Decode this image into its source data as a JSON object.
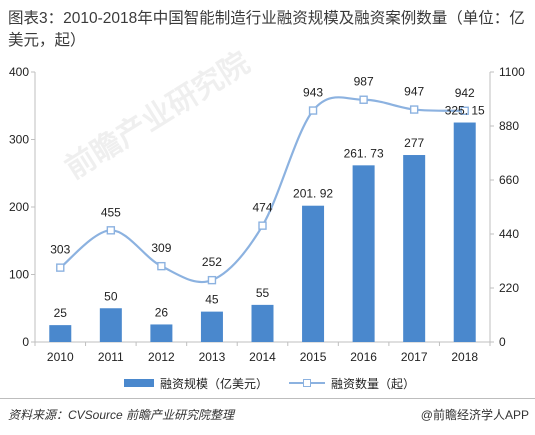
{
  "chart_data": {
    "type": "bar",
    "title": "图表3：2010-2018年中国智能制造行业融资规模及融资案例数量（单位：亿美元，起）",
    "categories": [
      "2010",
      "2011",
      "2012",
      "2013",
      "2014",
      "2015",
      "2016",
      "2017",
      "2018"
    ],
    "series": [
      {
        "name": "融资规模（亿美元）",
        "type": "bar",
        "axis": "left",
        "values": [
          25,
          50,
          26,
          45,
          55,
          201.92,
          261.73,
          277,
          325.15
        ],
        "labels": [
          "25",
          "50",
          "26",
          "45",
          "55",
          "201. 92",
          "261. 73",
          "277",
          "325. 15"
        ],
        "color": "#4a88cd"
      },
      {
        "name": "融资数量（起）",
        "type": "line",
        "axis": "right",
        "smooth": true,
        "marker": "square",
        "values": [
          303,
          455,
          309,
          252,
          474,
          943,
          987,
          947,
          942
        ],
        "labels": [
          "303",
          "455",
          "309",
          "252",
          "474",
          "943",
          "987",
          "947",
          "942"
        ],
        "color": "#8cb2e0"
      }
    ],
    "y_left": {
      "min": 0,
      "max": 400,
      "ticks": [
        0,
        100,
        200,
        300,
        400
      ]
    },
    "y_right": {
      "min": 0,
      "max": 1100,
      "ticks": [
        0,
        220,
        440,
        660,
        880,
        1100
      ]
    },
    "xlabel": "",
    "ylabel": "",
    "grid": false,
    "legend": "bottom"
  },
  "footer": {
    "source": "资料来源：CVSource 前瞻产业研究院整理",
    "credit": "@前瞻经济学人APP"
  },
  "watermark": "前瞻产业研究院"
}
